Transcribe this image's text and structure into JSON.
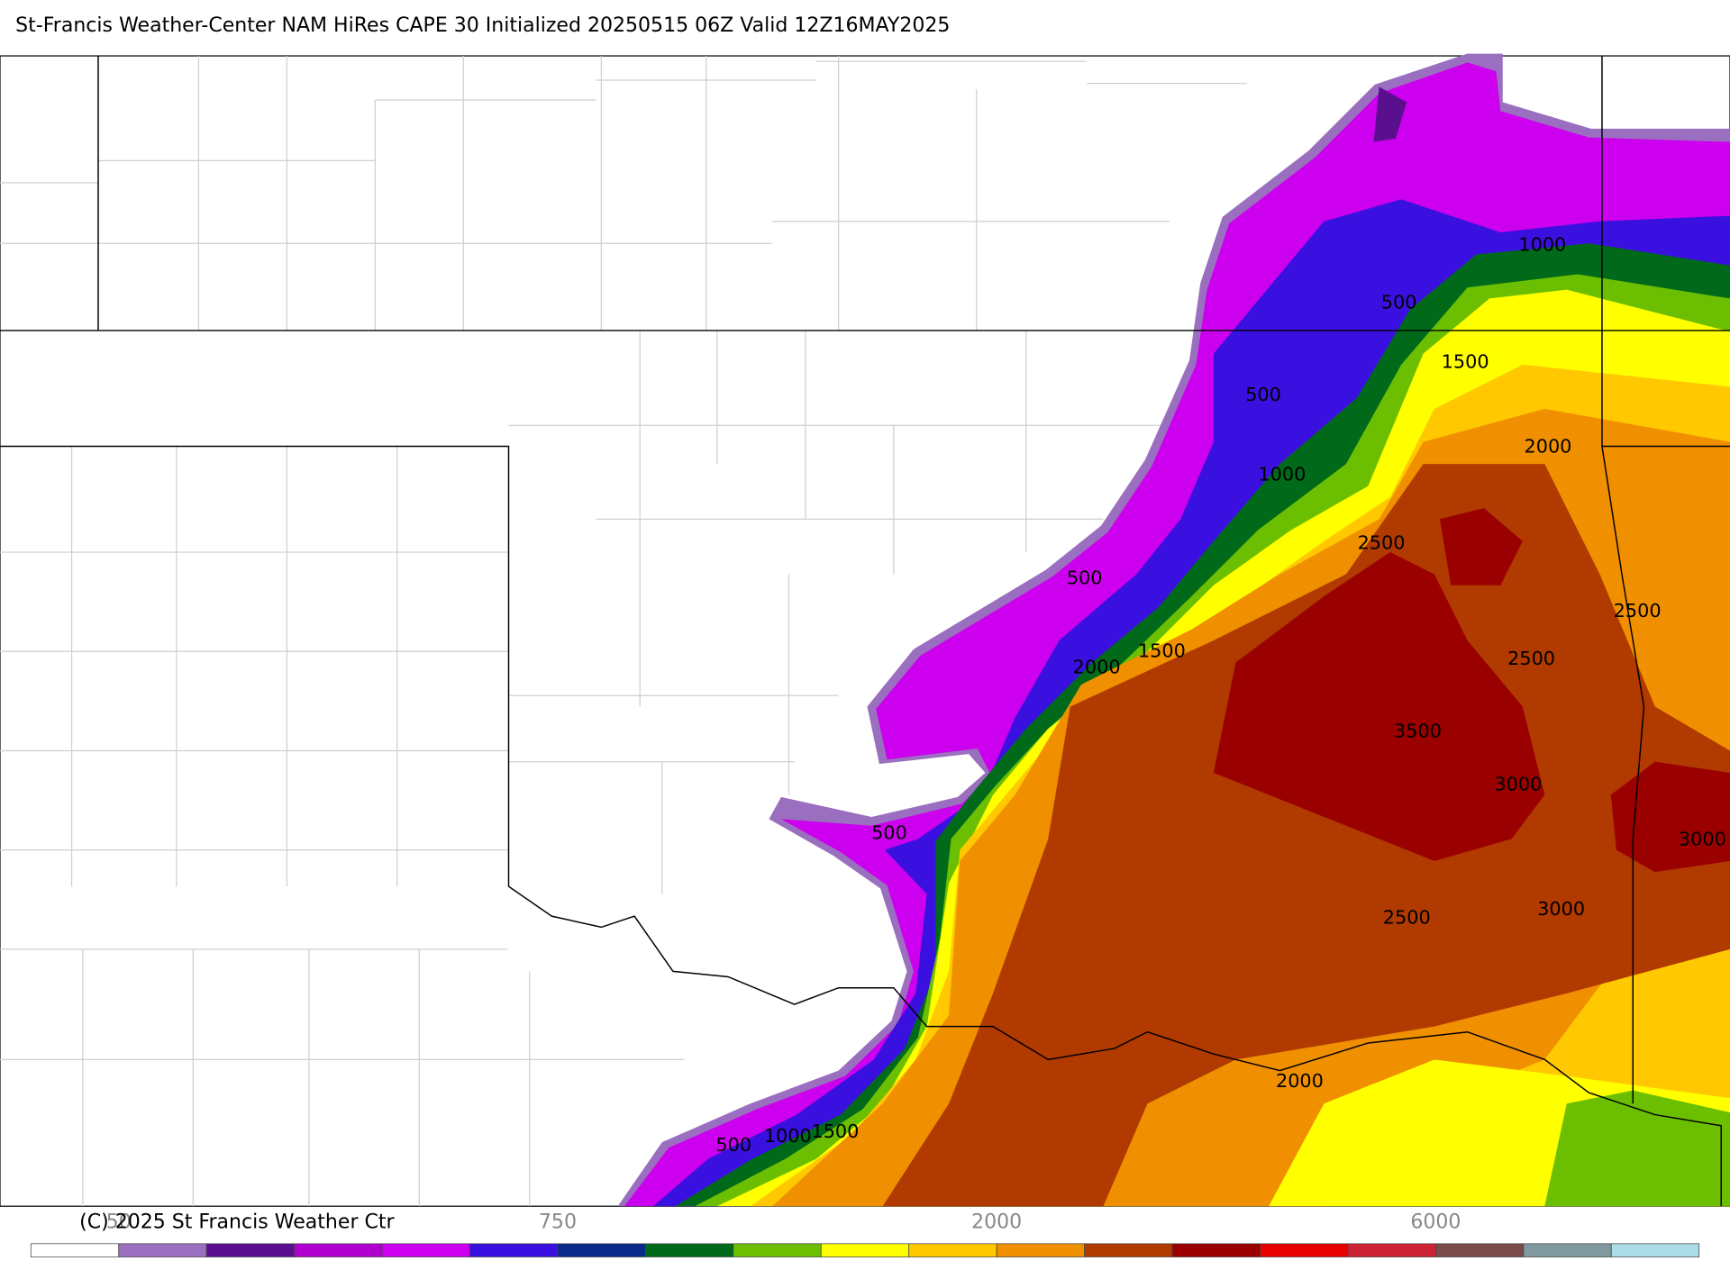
{
  "header": {
    "title": "St-Francis Weather-Center NAM HiRes CAPE  30 Initialized 20250515 06Z Valid 12Z16MAY2025"
  },
  "contour_labels": [
    1000,
    500,
    1500,
    500,
    2000,
    1000,
    2500,
    2500,
    500,
    1500,
    2000,
    2500,
    3500,
    3000,
    500,
    3000,
    2500,
    3000,
    2000,
    500,
    1000,
    1500
  ],
  "colorbar": {
    "colors": [
      "#ffffff",
      "#9b6fc0",
      "#5a0f8f",
      "#b000d0",
      "#cc00ee",
      "#3a10e0",
      "#0a2a8a",
      "#006a1a",
      "#6cbf00",
      "#ffff00",
      "#ffc800",
      "#f09000",
      "#b03a00",
      "#9a0000",
      "#e60000",
      "#cc2233",
      "#7a4a4a",
      "#80999f",
      "#aadde6"
    ],
    "labels": [
      "50",
      "750",
      "2000",
      "6000"
    ]
  },
  "footer": {
    "copyright": "(C) 2025 St Francis Weather Ctr"
  }
}
